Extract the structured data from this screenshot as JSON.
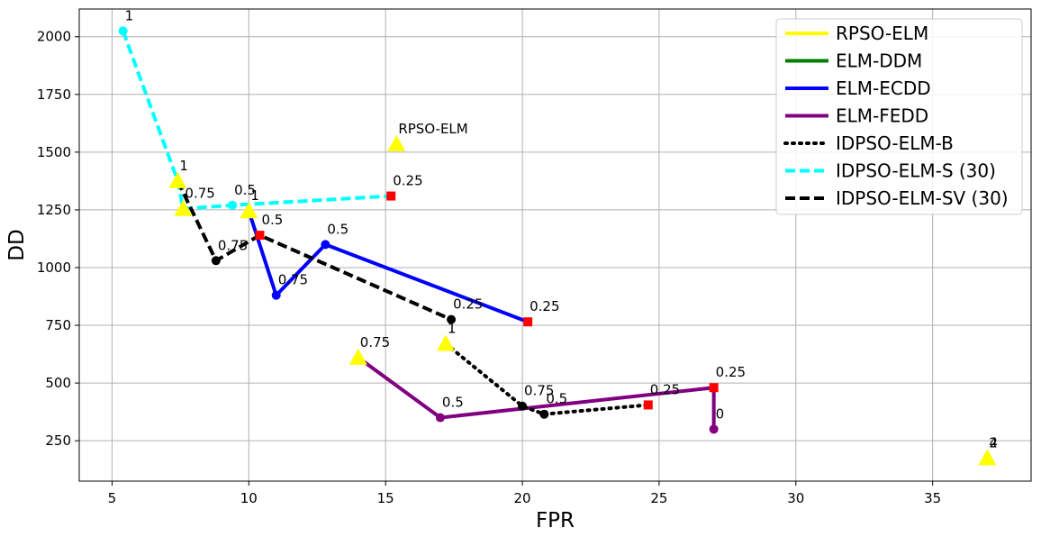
{
  "chart_data": {
    "type": "scatter",
    "xlabel": "FPR",
    "ylabel": "DD",
    "xlim": [
      3.8,
      38.6
    ],
    "ylim": [
      75,
      2120
    ],
    "x_ticks": [
      5,
      10,
      15,
      20,
      25,
      30,
      35
    ],
    "y_ticks": [
      250,
      500,
      750,
      1000,
      1250,
      1500,
      1750,
      2000
    ],
    "grid": true,
    "legend_position": "top-right",
    "series": [
      {
        "name": "RPSO-ELM",
        "color": "#ffff00",
        "line": "solid",
        "legend_line": true,
        "marker": "triangle",
        "points": [
          {
            "x": 15.4,
            "y": 1535
          }
        ],
        "draw_line": false
      },
      {
        "name": "ELM-DDM",
        "color": "#008000",
        "line": "solid",
        "legend_line": true,
        "marker": "none",
        "points": [],
        "draw_line": true
      },
      {
        "name": "ELM-ECDD",
        "color": "#0000ff",
        "line": "solid",
        "legend_line": true,
        "marker": "circle",
        "points": [
          {
            "x": 10.0,
            "y": 1245
          },
          {
            "x": 11.0,
            "y": 880
          },
          {
            "x": 12.8,
            "y": 1100
          },
          {
            "x": 20.2,
            "y": 765
          }
        ],
        "draw_line": true
      },
      {
        "name": "ELM-FEDD",
        "color": "#800080",
        "line": "solid",
        "legend_line": true,
        "marker": "circle",
        "points": [
          {
            "x": 14.0,
            "y": 610
          },
          {
            "x": 17.0,
            "y": 350
          },
          {
            "x": 27.0,
            "y": 480
          },
          {
            "x": 27.0,
            "y": 300
          }
        ],
        "draw_line": true
      },
      {
        "name": "IDPSO-ELM-B",
        "color": "#000000",
        "line": "dotted",
        "legend_line": true,
        "marker": "circle",
        "points": [
          {
            "x": 17.2,
            "y": 670
          },
          {
            "x": 20.0,
            "y": 400
          },
          {
            "x": 20.8,
            "y": 365
          },
          {
            "x": 24.6,
            "y": 405
          }
        ],
        "draw_line": true
      },
      {
        "name": "IDPSO-ELM-S (30)",
        "color": "#00ffff",
        "line": "dashed",
        "legend_line": true,
        "marker": "circle",
        "points": [
          {
            "x": 5.4,
            "y": 2025
          },
          {
            "x": 7.4,
            "y": 1375
          },
          {
            "x": 7.6,
            "y": 1255
          },
          {
            "x": 9.4,
            "y": 1270
          },
          {
            "x": 15.2,
            "y": 1310
          }
        ],
        "draw_line": true
      },
      {
        "name": "IDPSO-ELM-SV (30)",
        "color": "#000000",
        "line": "dashed",
        "legend_line": true,
        "marker": "circle",
        "points": [
          {
            "x": 7.4,
            "y": 1375
          },
          {
            "x": 8.8,
            "y": 1030
          },
          {
            "x": 10.4,
            "y": 1140
          },
          {
            "x": 17.4,
            "y": 775
          }
        ],
        "draw_line": true
      }
    ],
    "markers": [
      {
        "x": 5.4,
        "y": 2025,
        "shape": "circle",
        "color": "#00ffff"
      },
      {
        "x": 9.4,
        "y": 1270,
        "shape": "circle",
        "color": "#00ffff"
      },
      {
        "x": 15.2,
        "y": 1310,
        "shape": "square",
        "color": "#ff0000"
      },
      {
        "x": 8.8,
        "y": 1030,
        "shape": "circle",
        "color": "#000000"
      },
      {
        "x": 10.4,
        "y": 1140,
        "shape": "square",
        "color": "#ff0000"
      },
      {
        "x": 17.4,
        "y": 775,
        "shape": "circle",
        "color": "#000000"
      },
      {
        "x": 11.0,
        "y": 880,
        "shape": "circle",
        "color": "#0000ff"
      },
      {
        "x": 12.8,
        "y": 1100,
        "shape": "circle",
        "color": "#0000ff"
      },
      {
        "x": 20.2,
        "y": 765,
        "shape": "square",
        "color": "#ff0000"
      },
      {
        "x": 17.0,
        "y": 350,
        "shape": "circle",
        "color": "#800080"
      },
      {
        "x": 27.0,
        "y": 480,
        "shape": "square",
        "color": "#ff0000"
      },
      {
        "x": 27.0,
        "y": 300,
        "shape": "circle",
        "color": "#800080"
      },
      {
        "x": 20.0,
        "y": 400,
        "shape": "circle",
        "color": "#000000"
      },
      {
        "x": 20.8,
        "y": 365,
        "shape": "circle",
        "color": "#000000"
      },
      {
        "x": 24.6,
        "y": 405,
        "shape": "square",
        "color": "#ff0000"
      },
      {
        "x": 7.4,
        "y": 1375,
        "shape": "triangle",
        "color": "#ffff00"
      },
      {
        "x": 7.6,
        "y": 1255,
        "shape": "triangle",
        "color": "#ffff00"
      },
      {
        "x": 10.0,
        "y": 1245,
        "shape": "triangle",
        "color": "#ffff00"
      },
      {
        "x": 15.4,
        "y": 1535,
        "shape": "triangle",
        "color": "#ffff00"
      },
      {
        "x": 14.0,
        "y": 610,
        "shape": "triangle",
        "color": "#ffff00"
      },
      {
        "x": 17.2,
        "y": 670,
        "shape": "triangle",
        "color": "#ffff00"
      },
      {
        "x": 37.0,
        "y": 175,
        "shape": "triangle",
        "color": "#ffff00"
      }
    ],
    "annotations": [
      {
        "x": 5.4,
        "y": 2025,
        "text": "1"
      },
      {
        "x": 15.4,
        "y": 1535,
        "text": "RPSO-ELM"
      },
      {
        "x": 15.2,
        "y": 1310,
        "text": "0.25"
      },
      {
        "x": 7.4,
        "y": 1375,
        "text": "1"
      },
      {
        "x": 7.6,
        "y": 1255,
        "text": "0.75"
      },
      {
        "x": 9.4,
        "y": 1270,
        "text": "0.5"
      },
      {
        "x": 10.0,
        "y": 1245,
        "text": "1"
      },
      {
        "x": 10.4,
        "y": 1140,
        "text": "0.5"
      },
      {
        "x": 8.8,
        "y": 1030,
        "text": "0.75"
      },
      {
        "x": 12.8,
        "y": 1100,
        "text": "0.5"
      },
      {
        "x": 11.0,
        "y": 880,
        "text": "0.75"
      },
      {
        "x": 17.4,
        "y": 775,
        "text": "0.25"
      },
      {
        "x": 20.2,
        "y": 765,
        "text": "0.25"
      },
      {
        "x": 17.2,
        "y": 670,
        "text": "1"
      },
      {
        "x": 14.0,
        "y": 610,
        "text": "0.75"
      },
      {
        "x": 17.0,
        "y": 350,
        "text": "0.5"
      },
      {
        "x": 20.0,
        "y": 400,
        "text": "0.75"
      },
      {
        "x": 20.8,
        "y": 365,
        "text": "0.5"
      },
      {
        "x": 24.6,
        "y": 405,
        "text": "0.25"
      },
      {
        "x": 27.0,
        "y": 480,
        "text": "0.25"
      },
      {
        "x": 27.0,
        "y": 300,
        "text": "0"
      },
      {
        "x": 37.0,
        "y": 175,
        "text": "2"
      },
      {
        "x": 37.0,
        "y": 175,
        "text": "4"
      }
    ]
  }
}
